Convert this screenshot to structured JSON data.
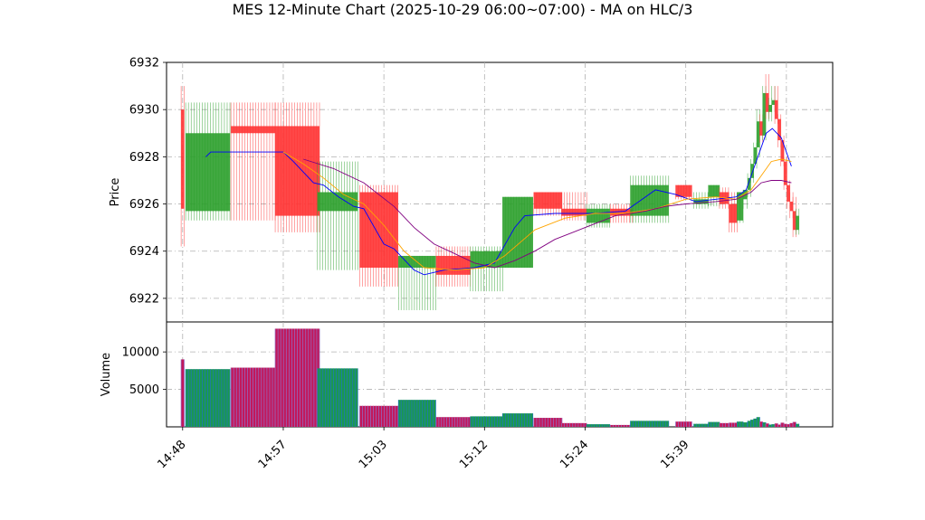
{
  "chart_data": {
    "type": "candlestick",
    "title": "MES 12-Minute Chart (2025-10-29 06:00~07:00) - MA on HLC/3",
    "price_panel": {
      "ylabel": "Price",
      "ylim": [
        6921.0,
        6932.0
      ],
      "yticks": [
        6922,
        6924,
        6926,
        6928,
        6930,
        6932
      ],
      "grid": true
    },
    "volume_panel": {
      "ylabel": "Volume",
      "ylim": [
        0,
        14000
      ],
      "yticks": [
        5000,
        10000
      ],
      "ytick_labels": [
        "5000",
        "10000"
      ],
      "grid": true
    },
    "x_axis": {
      "xlim": [
        -1.6,
        64.6
      ],
      "ticks": [
        {
          "x": 0,
          "label": "14:48"
        },
        {
          "x": 10,
          "label": "14:57"
        },
        {
          "x": 20,
          "label": "15:03"
        },
        {
          "x": 30,
          "label": "15:12"
        },
        {
          "x": 40,
          "label": "15:24"
        },
        {
          "x": 50,
          "label": "15:39"
        },
        {
          "x": 60,
          "label": ""
        }
      ]
    },
    "candles": [
      {
        "x": 0,
        "w": 0.3,
        "open": 6925.8,
        "high": 6931.0,
        "low": 6924.2,
        "close": 6930.0,
        "volume": 9000,
        "color": "red"
      },
      {
        "x": 2.5,
        "w": 4.4,
        "open": 6925.7,
        "high": 6930.3,
        "low": 6925.3,
        "close": 6929.0,
        "volume": 7700,
        "color": "green"
      },
      {
        "x": 7.0,
        "w": 4.4,
        "open": 6929.3,
        "high": 6930.3,
        "low": 6925.3,
        "close": 6929.0,
        "volume": 7900,
        "color": "red"
      },
      {
        "x": 11.4,
        "w": 4.4,
        "open": 6929.3,
        "high": 6930.3,
        "low": 6924.8,
        "close": 6925.5,
        "volume": 13100,
        "color": "red"
      },
      {
        "x": 15.4,
        "w": 4.0,
        "open": 6925.7,
        "high": 6927.8,
        "low": 6923.2,
        "close": 6926.5,
        "volume": 7800,
        "color": "green"
      },
      {
        "x": 19.5,
        "w": 3.8,
        "open": 6926.5,
        "high": 6926.8,
        "low": 6922.5,
        "close": 6923.3,
        "volume": 2800,
        "color": "red"
      },
      {
        "x": 23.3,
        "w": 3.7,
        "open": 6923.3,
        "high": 6923.8,
        "low": 6921.5,
        "close": 6923.8,
        "volume": 3600,
        "color": "green"
      },
      {
        "x": 26.9,
        "w": 3.4,
        "open": 6923.8,
        "high": 6924.2,
        "low": 6922.5,
        "close": 6923.0,
        "volume": 1300,
        "color": "red"
      },
      {
        "x": 30.2,
        "w": 3.2,
        "open": 6923.3,
        "high": 6924.2,
        "low": 6922.3,
        "close": 6924.0,
        "volume": 1400,
        "color": "green"
      },
      {
        "x": 33.3,
        "w": 3.0,
        "open": 6923.3,
        "high": 6926.3,
        "low": 6923.3,
        "close": 6926.3,
        "volume": 1800,
        "color": "green"
      },
      {
        "x": 36.3,
        "w": 2.8,
        "open": 6926.5,
        "high": 6926.5,
        "low": 6925.5,
        "close": 6925.8,
        "volume": 1200,
        "color": "red"
      },
      {
        "x": 38.9,
        "w": 2.5,
        "open": 6925.8,
        "high": 6926.5,
        "low": 6925.3,
        "close": 6925.5,
        "volume": 500,
        "color": "red"
      },
      {
        "x": 41.3,
        "w": 2.3,
        "open": 6925.2,
        "high": 6926.0,
        "low": 6925.0,
        "close": 6925.8,
        "volume": 350,
        "color": "green"
      },
      {
        "x": 43.6,
        "w": 2.2,
        "open": 6925.8,
        "high": 6926.0,
        "low": 6925.2,
        "close": 6925.5,
        "volume": 250,
        "color": "red"
      },
      {
        "x": 46.4,
        "w": 3.8,
        "open": 6925.5,
        "high": 6927.2,
        "low": 6925.2,
        "close": 6926.8,
        "volume": 800,
        "color": "green"
      },
      {
        "x": 49.8,
        "w": 1.6,
        "open": 6926.8,
        "high": 6926.8,
        "low": 6926.2,
        "close": 6926.3,
        "volume": 700,
        "color": "red"
      },
      {
        "x": 51.5,
        "w": 1.4,
        "open": 6926.0,
        "high": 6926.5,
        "low": 6925.8,
        "close": 6926.2,
        "volume": 400,
        "color": "green"
      },
      {
        "x": 52.8,
        "w": 1.1,
        "open": 6926.3,
        "high": 6926.8,
        "low": 6925.9,
        "close": 6926.8,
        "volume": 650,
        "color": "green"
      },
      {
        "x": 53.8,
        "w": 0.9,
        "open": 6926.5,
        "high": 6926.7,
        "low": 6925.8,
        "close": 6926.0,
        "volume": 500,
        "color": "red"
      },
      {
        "x": 54.7,
        "w": 0.8,
        "open": 6926.0,
        "high": 6926.5,
        "low": 6924.8,
        "close": 6925.2,
        "volume": 550,
        "color": "red"
      },
      {
        "x": 55.4,
        "w": 0.6,
        "open": 6925.3,
        "high": 6926.5,
        "low": 6925.2,
        "close": 6926.5,
        "volume": 700,
        "color": "green"
      },
      {
        "x": 55.9,
        "w": 0.4,
        "open": 6926.2,
        "high": 6926.6,
        "low": 6925.8,
        "close": 6926.6,
        "volume": 600,
        "color": "green"
      },
      {
        "x": 56.3,
        "w": 0.3,
        "open": 6926.6,
        "high": 6927.3,
        "low": 6926.3,
        "close": 6927.1,
        "volume": 800,
        "color": "green"
      },
      {
        "x": 56.6,
        "w": 0.3,
        "open": 6927.1,
        "high": 6927.9,
        "low": 6926.9,
        "close": 6927.7,
        "volume": 950,
        "color": "green"
      },
      {
        "x": 56.9,
        "w": 0.3,
        "open": 6927.7,
        "high": 6928.6,
        "low": 6927.5,
        "close": 6928.4,
        "volume": 1100,
        "color": "green"
      },
      {
        "x": 57.2,
        "w": 0.3,
        "open": 6928.4,
        "high": 6930.0,
        "low": 6928.0,
        "close": 6929.5,
        "volume": 1300,
        "color": "green"
      },
      {
        "x": 57.5,
        "w": 0.3,
        "open": 6929.5,
        "high": 6929.8,
        "low": 6928.6,
        "close": 6928.9,
        "volume": 700,
        "color": "red"
      },
      {
        "x": 57.8,
        "w": 0.3,
        "open": 6928.9,
        "high": 6931.0,
        "low": 6928.7,
        "close": 6930.7,
        "volume": 600,
        "color": "green"
      },
      {
        "x": 58.1,
        "w": 0.3,
        "open": 6930.7,
        "high": 6931.5,
        "low": 6929.6,
        "close": 6929.9,
        "volume": 450,
        "color": "red"
      },
      {
        "x": 58.4,
        "w": 0.3,
        "open": 6929.9,
        "high": 6930.5,
        "low": 6929.5,
        "close": 6930.2,
        "volume": 300,
        "color": "green"
      },
      {
        "x": 58.7,
        "w": 0.3,
        "open": 6930.2,
        "high": 6931.0,
        "low": 6929.9,
        "close": 6930.4,
        "volume": 350,
        "color": "green"
      },
      {
        "x": 59.0,
        "w": 0.3,
        "open": 6930.4,
        "high": 6931.0,
        "low": 6929.4,
        "close": 6929.6,
        "volume": 450,
        "color": "red"
      },
      {
        "x": 59.3,
        "w": 0.3,
        "open": 6929.6,
        "high": 6929.8,
        "low": 6928.4,
        "close": 6928.7,
        "volume": 300,
        "color": "red"
      },
      {
        "x": 59.6,
        "w": 0.3,
        "open": 6928.7,
        "high": 6928.9,
        "low": 6927.6,
        "close": 6927.8,
        "volume": 550,
        "color": "red"
      },
      {
        "x": 59.9,
        "w": 0.3,
        "open": 6927.8,
        "high": 6928.0,
        "low": 6926.6,
        "close": 6926.8,
        "volume": 400,
        "color": "red"
      },
      {
        "x": 60.2,
        "w": 0.3,
        "open": 6926.8,
        "high": 6927.0,
        "low": 6925.8,
        "close": 6926.1,
        "volume": 350,
        "color": "red"
      },
      {
        "x": 60.5,
        "w": 0.3,
        "open": 6926.1,
        "high": 6926.5,
        "low": 6925.4,
        "close": 6925.7,
        "volume": 500,
        "color": "red"
      },
      {
        "x": 60.8,
        "w": 0.3,
        "open": 6925.7,
        "high": 6926.3,
        "low": 6924.6,
        "close": 6924.9,
        "volume": 650,
        "color": "red"
      },
      {
        "x": 61.1,
        "w": 0.3,
        "open": 6924.9,
        "high": 6925.8,
        "low": 6924.7,
        "close": 6925.5,
        "volume": 400,
        "color": "green"
      }
    ],
    "moving_averages": [
      {
        "color": "#0000ff",
        "points": [
          [
            2.3,
            6928.0
          ],
          [
            2.8,
            6928.2
          ],
          [
            5,
            6928.2
          ],
          [
            8,
            6928.2
          ],
          [
            10,
            6928.2
          ],
          [
            11,
            6927.8
          ],
          [
            13,
            6926.9
          ],
          [
            14,
            6926.8
          ],
          [
            15.5,
            6926.3
          ],
          [
            17,
            6925.9
          ],
          [
            18,
            6925.8
          ],
          [
            20,
            6924.3
          ],
          [
            21,
            6924.1
          ],
          [
            23,
            6923.2
          ],
          [
            24,
            6923.0
          ],
          [
            26,
            6923.2
          ],
          [
            29,
            6923.3
          ],
          [
            31,
            6923.5
          ],
          [
            33,
            6925.0
          ],
          [
            34,
            6925.5
          ],
          [
            37,
            6925.6
          ],
          [
            41,
            6925.6
          ],
          [
            44,
            6925.7
          ],
          [
            46,
            6926.3
          ],
          [
            47,
            6926.6
          ],
          [
            49,
            6926.4
          ],
          [
            51,
            6926.1
          ],
          [
            53,
            6926.2
          ],
          [
            55,
            6926.3
          ],
          [
            56,
            6926.6
          ],
          [
            57,
            6927.8
          ],
          [
            58,
            6929.0
          ],
          [
            58.6,
            6929.2
          ],
          [
            59.5,
            6928.8
          ],
          [
            60.5,
            6927.6
          ]
        ]
      },
      {
        "color": "#ffa500",
        "points": [
          [
            10,
            6928.2
          ],
          [
            12,
            6927.7
          ],
          [
            14,
            6927.1
          ],
          [
            16,
            6926.4
          ],
          [
            18,
            6926.0
          ],
          [
            20,
            6925.1
          ],
          [
            22,
            6924.0
          ],
          [
            24,
            6923.3
          ],
          [
            27,
            6923.2
          ],
          [
            30,
            6923.3
          ],
          [
            32,
            6923.8
          ],
          [
            35,
            6924.9
          ],
          [
            38,
            6925.4
          ],
          [
            41,
            6925.6
          ],
          [
            44,
            6925.6
          ],
          [
            47,
            6925.8
          ],
          [
            50,
            6926.2
          ],
          [
            53,
            6926.3
          ],
          [
            55,
            6926.2
          ],
          [
            56.5,
            6926.6
          ],
          [
            57.5,
            6927.2
          ],
          [
            58.5,
            6927.8
          ],
          [
            59.5,
            6927.9
          ],
          [
            60.5,
            6927.8
          ]
        ]
      },
      {
        "color": "#800080",
        "points": [
          [
            12,
            6927.9
          ],
          [
            15,
            6927.5
          ],
          [
            18,
            6926.9
          ],
          [
            21,
            6925.9
          ],
          [
            23,
            6925.0
          ],
          [
            25,
            6924.3
          ],
          [
            27,
            6923.9
          ],
          [
            29,
            6923.5
          ],
          [
            31,
            6923.3
          ],
          [
            33,
            6923.6
          ],
          [
            35,
            6924.0
          ],
          [
            37,
            6924.5
          ],
          [
            40,
            6925.0
          ],
          [
            43,
            6925.5
          ],
          [
            46,
            6925.7
          ],
          [
            48,
            6925.9
          ],
          [
            50,
            6926.0
          ],
          [
            53,
            6926.1
          ],
          [
            55,
            6926.2
          ],
          [
            56.5,
            6926.5
          ],
          [
            57.5,
            6926.9
          ],
          [
            58.5,
            6927.0
          ],
          [
            59.5,
            6927.0
          ],
          [
            60.5,
            6926.9
          ]
        ]
      }
    ],
    "colors": {
      "up": "#2ca02c",
      "down": "#ff3333",
      "volume_edge_up": "#1f77b4",
      "volume_edge_down": "#9467bd",
      "grid": "#b0b0b0"
    }
  }
}
